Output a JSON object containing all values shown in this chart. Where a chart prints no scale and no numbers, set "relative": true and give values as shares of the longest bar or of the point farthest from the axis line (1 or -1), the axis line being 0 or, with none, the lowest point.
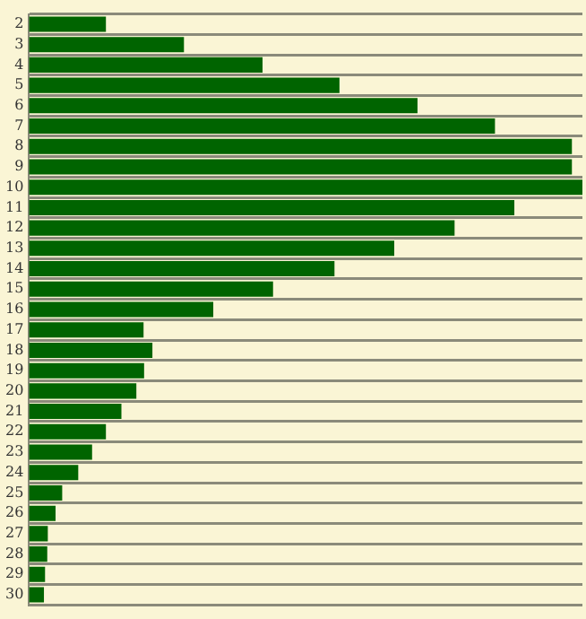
{
  "chart_data": {
    "type": "bar",
    "orientation": "horizontal",
    "relative": true,
    "categories": [
      "2",
      "3",
      "4",
      "5",
      "6",
      "7",
      "8",
      "9",
      "10",
      "11",
      "12",
      "13",
      "14",
      "15",
      "16",
      "17",
      "18",
      "19",
      "20",
      "21",
      "22",
      "23",
      "24",
      "25",
      "26",
      "27",
      "28",
      "29",
      "30"
    ],
    "values": [
      0.139,
      0.28,
      0.422,
      0.561,
      0.702,
      0.842,
      0.981,
      0.981,
      1,
      0.877,
      0.769,
      0.66,
      0.552,
      0.441,
      0.333,
      0.207,
      0.223,
      0.208,
      0.194,
      0.167,
      0.139,
      0.114,
      0.089,
      0.06,
      0.048,
      0.034,
      0.033,
      0.029,
      0.027
    ],
    "color": "#006400",
    "grid": "y",
    "legend": false
  }
}
